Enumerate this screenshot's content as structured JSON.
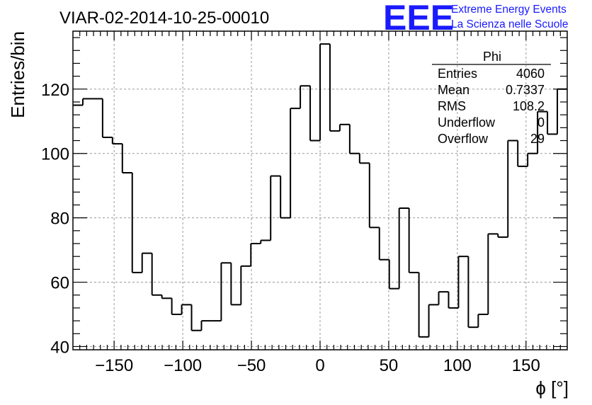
{
  "colors": {
    "background": "#ffffff",
    "frame": "#000000",
    "histogram": "#000000",
    "grid": "#999999",
    "logo": "#1a1aff"
  },
  "logo": {
    "mark": "EEE",
    "line1": "Extreme Energy Events",
    "line2": "La Scienza nelle Scuole"
  },
  "chart_data": {
    "type": "histogram",
    "title": "VIAR-02-2014-10-25-00010",
    "xlabel": "ϕ [°]",
    "ylabel": "Entries/bin",
    "xlim": [
      -180,
      180
    ],
    "ylim": [
      39,
      138
    ],
    "grid": true,
    "bin_width": 7.2,
    "x_ticks": [
      -150,
      -100,
      -50,
      0,
      50,
      100,
      150
    ],
    "x_tick_labels": [
      "−150",
      "−100",
      "−50",
      "0",
      "50",
      "100",
      "150"
    ],
    "y_ticks": [
      40,
      60,
      80,
      100,
      120
    ],
    "y_tick_labels": [
      "40",
      "60",
      "80",
      "100",
      "120"
    ],
    "bin_edges_start": -180,
    "values": [
      115,
      117,
      117,
      105,
      103,
      94,
      63,
      69,
      56,
      55,
      50,
      53,
      45,
      48,
      48,
      66,
      53,
      65,
      72,
      73,
      93,
      80,
      114,
      121,
      104,
      134,
      107,
      109,
      100,
      97,
      77,
      67,
      58,
      83,
      63,
      43,
      53,
      57,
      52,
      68,
      46,
      50,
      75,
      74,
      104,
      96,
      100,
      113,
      106,
      120
    ],
    "stats": {
      "name": "Phi",
      "rows": [
        {
          "label": "Entries",
          "value": "4060"
        },
        {
          "label": "Mean",
          "value": "0.7337"
        },
        {
          "label": "RMS",
          "value": "108.2"
        },
        {
          "label": "Underflow",
          "value": "0"
        },
        {
          "label": "Overflow",
          "value": "29"
        }
      ]
    }
  }
}
